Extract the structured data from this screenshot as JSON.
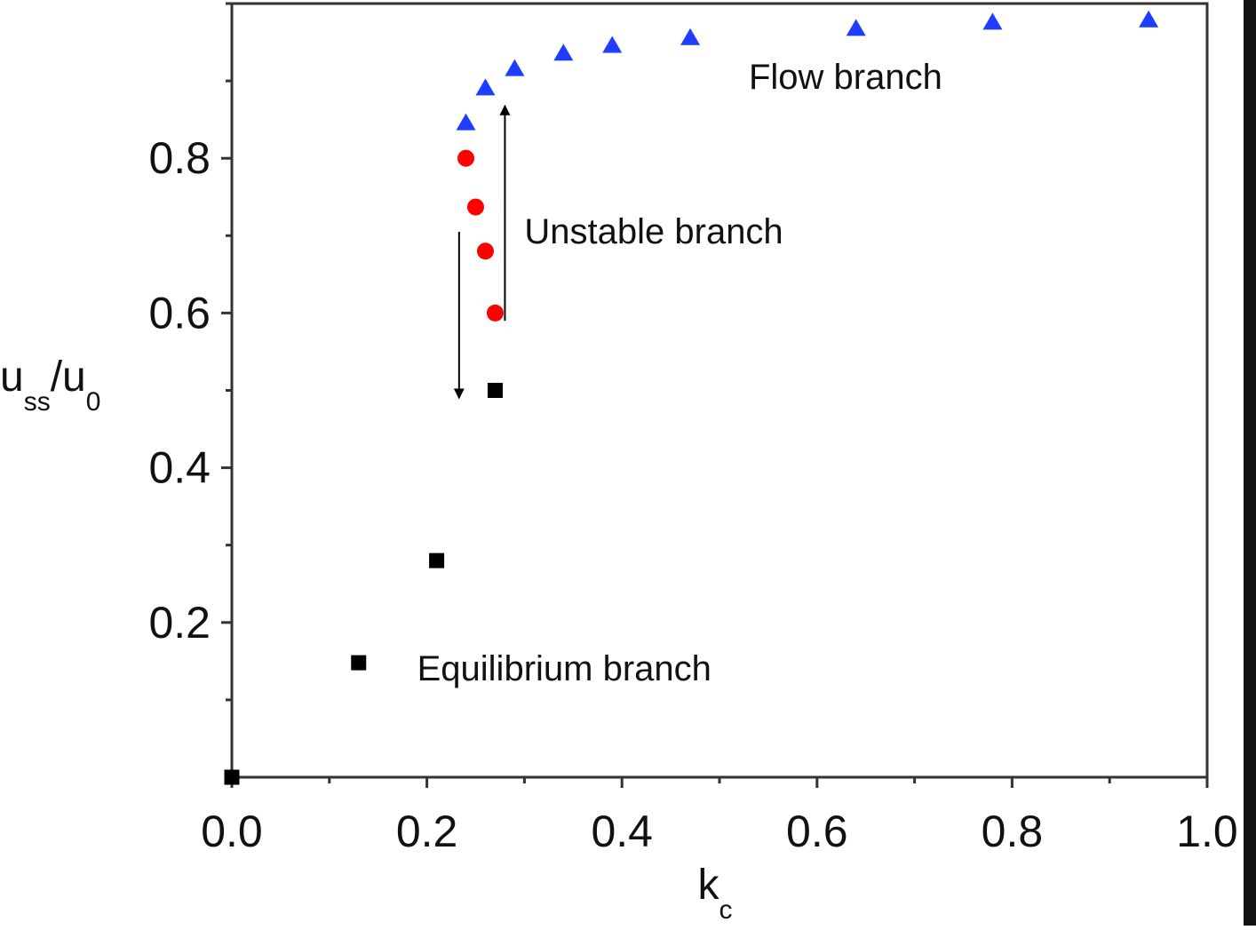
{
  "chart_data": {
    "type": "scatter",
    "title": "",
    "xlabel": {
      "main": "k",
      "sub": "c"
    },
    "ylabel": {
      "parts": [
        {
          "text": "u",
          "sub": false
        },
        {
          "text": "ss",
          "sub": true
        },
        {
          "text": "/u",
          "sub": false
        },
        {
          "text": "0",
          "sub": true
        }
      ]
    },
    "xlim": [
      0,
      1.0
    ],
    "ylim": [
      0,
      1.0
    ],
    "xticks": [
      {
        "value": 0.0,
        "label": "0.0"
      },
      {
        "value": 0.2,
        "label": "0.2"
      },
      {
        "value": 0.4,
        "label": "0.4"
      },
      {
        "value": 0.6,
        "label": "0.6"
      },
      {
        "value": 0.8,
        "label": "0.8"
      },
      {
        "value": 1.0,
        "label": "1.0"
      }
    ],
    "yticks": [
      {
        "value": 0.2,
        "label": "0.2"
      },
      {
        "value": 0.4,
        "label": "0.4"
      },
      {
        "value": 0.6,
        "label": "0.6"
      },
      {
        "value": 0.8,
        "label": "0.8"
      }
    ],
    "grid": false,
    "legend": "none",
    "series": [
      {
        "marker": "square",
        "color": "#000000",
        "points": [
          {
            "x": 0.0,
            "y": 0.0
          },
          {
            "x": 0.13,
            "y": 0.148
          },
          {
            "x": 0.21,
            "y": 0.28
          },
          {
            "x": 0.27,
            "y": 0.5
          }
        ]
      },
      {
        "marker": "circle",
        "color": "#ff0000",
        "points": [
          {
            "x": 0.24,
            "y": 0.8
          },
          {
            "x": 0.25,
            "y": 0.737
          },
          {
            "x": 0.26,
            "y": 0.68
          },
          {
            "x": 0.27,
            "y": 0.6
          }
        ]
      },
      {
        "marker": "triangle",
        "color": "#1f3cff",
        "points": [
          {
            "x": 0.24,
            "y": 0.845
          },
          {
            "x": 0.26,
            "y": 0.89
          },
          {
            "x": 0.29,
            "y": 0.915
          },
          {
            "x": 0.34,
            "y": 0.935
          },
          {
            "x": 0.39,
            "y": 0.945
          },
          {
            "x": 0.47,
            "y": 0.955
          },
          {
            "x": 0.64,
            "y": 0.967
          },
          {
            "x": 0.78,
            "y": 0.975
          },
          {
            "x": 0.94,
            "y": 0.978
          }
        ]
      }
    ],
    "annotations": [
      {
        "text": "Flow branch",
        "x": 0.53,
        "y": 0.89
      },
      {
        "text": "Unstable branch",
        "x": 0.3,
        "y": 0.69
      },
      {
        "text": "Equilibrium branch",
        "x": 0.19,
        "y": 0.125
      }
    ],
    "arrows": [
      {
        "x": 0.233,
        "y_from": 0.705,
        "y_to": 0.49
      },
      {
        "x": 0.28,
        "y_from": 0.59,
        "y_to": 0.868
      }
    ]
  }
}
